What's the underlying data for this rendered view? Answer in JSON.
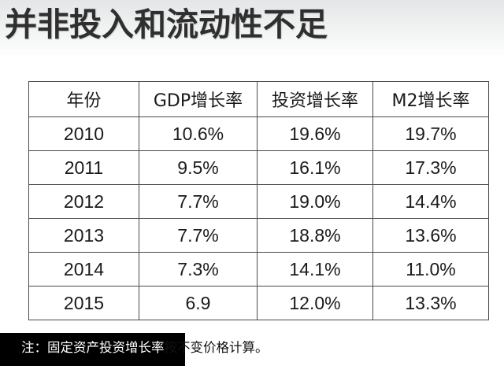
{
  "title": "并非投入和流动性不足",
  "table": {
    "headers": [
      "年份",
      "GDP增长率",
      "投资增长率",
      "M2增长率"
    ],
    "rows": [
      [
        "2010",
        "10.6%",
        "19.6%",
        "19.7%"
      ],
      [
        "2011",
        "9.5%",
        "16.1%",
        "17.3%"
      ],
      [
        "2012",
        "7.7%",
        "19.0%",
        "14.4%"
      ],
      [
        "2013",
        "7.7%",
        "18.8%",
        "13.6%"
      ],
      [
        "2014",
        "7.3%",
        "14.1%",
        "11.0%"
      ],
      [
        "2015",
        "6.9",
        "12.0%",
        "13.3%"
      ]
    ]
  },
  "footnote": {
    "part_on_bar": "注：固定资产投资增长率",
    "part_after_bar": "按不变价格计算。"
  }
}
